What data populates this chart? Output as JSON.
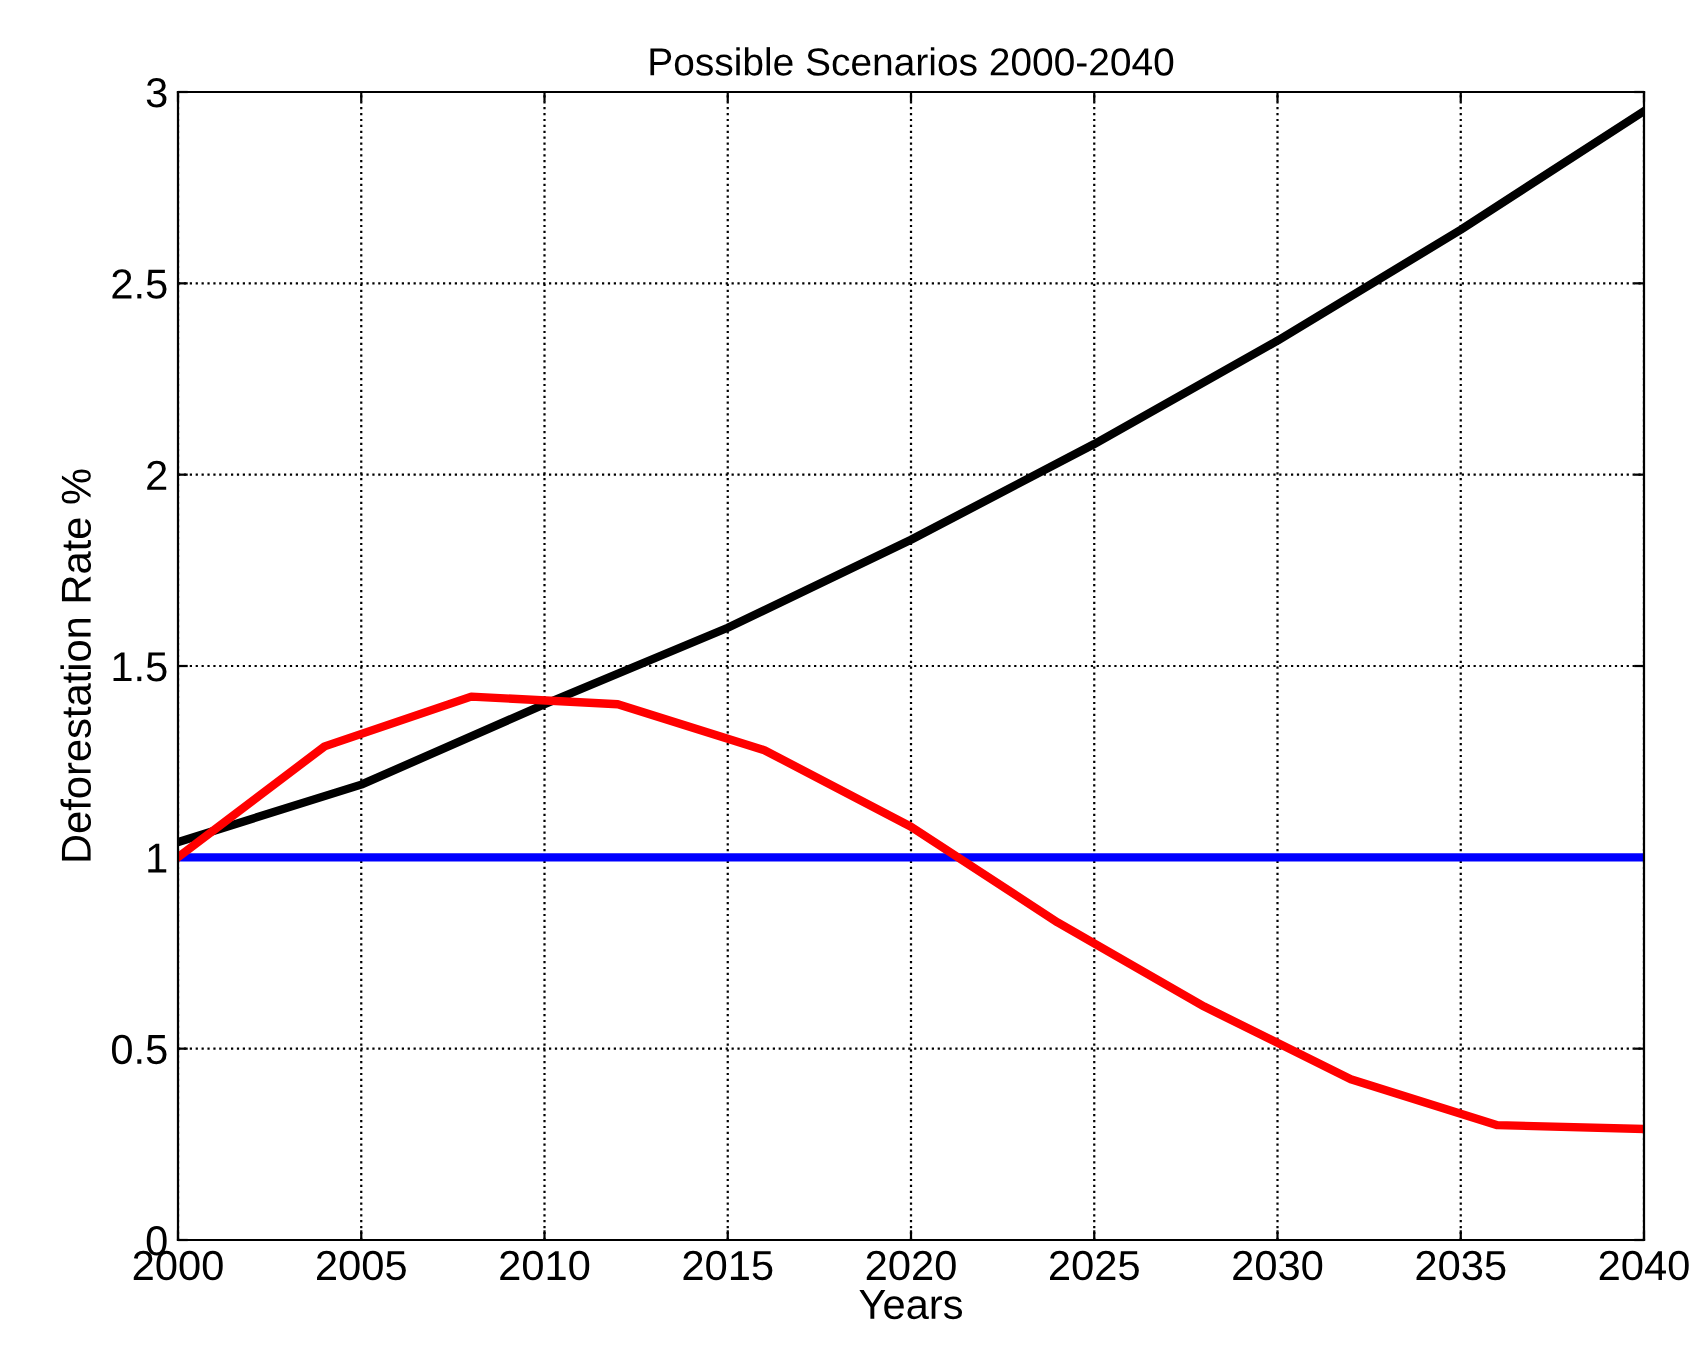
{
  "chart_data": {
    "type": "line",
    "title": "Possible Scenarios 2000-2040",
    "xlabel": "Years",
    "ylabel": "Deforestation Rate %",
    "xlim": [
      2000,
      2040
    ],
    "xticks": [
      2000,
      2005,
      2010,
      2015,
      2020,
      2025,
      2030,
      2035,
      2040
    ],
    "ylim": [
      0,
      3
    ],
    "yticks": [
      0,
      0.5,
      1,
      1.5,
      2,
      2.5,
      3
    ],
    "grid": true,
    "line_style": "solid",
    "marker": "none",
    "series": [
      {
        "color": "#000000",
        "x": [
          2000,
          2005,
          2010,
          2015,
          2020,
          2025,
          2030,
          2035,
          2040
        ],
        "values": [
          1.04,
          1.19,
          1.4,
          1.6,
          1.83,
          2.08,
          2.35,
          2.64,
          2.95
        ]
      },
      {
        "color": "#0000ff",
        "x": [
          2000,
          2040
        ],
        "values": [
          1,
          1
        ]
      },
      {
        "color": "#ff0000",
        "x": [
          2000,
          2004,
          2008,
          2012,
          2016,
          2020,
          2024,
          2028,
          2032,
          2036,
          2040
        ],
        "values": [
          1.0,
          1.29,
          1.42,
          1.4,
          1.28,
          1.08,
          0.83,
          0.61,
          0.42,
          0.3,
          0.29
        ]
      }
    ]
  }
}
